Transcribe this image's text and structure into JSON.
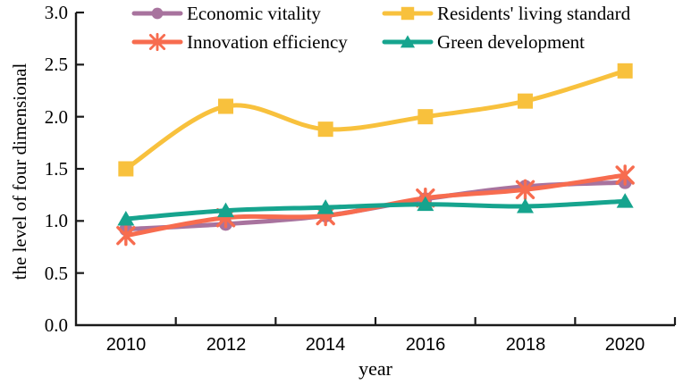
{
  "chart_data": {
    "type": "line",
    "title": "",
    "xlabel": "year",
    "ylabel": "the level of four dimensional",
    "x_categories": [
      "2010",
      "2012",
      "2014",
      "2016",
      "2018",
      "2020"
    ],
    "y_ticks": [
      "3.0",
      "2.5",
      "2.0",
      "1.5",
      "1.0",
      "0.5",
      "0.0"
    ],
    "ylim": [
      0.0,
      3.0
    ],
    "grid": false,
    "legend_position": "top-two-columns",
    "line_style": "smooth",
    "axis_color": "#1a1a1a",
    "series": [
      {
        "name": "Economic vitality",
        "color": "#a8739e",
        "marker": "circle",
        "values": [
          0.92,
          0.97,
          1.05,
          1.21,
          1.33,
          1.37
        ]
      },
      {
        "name": "Innovation efficiency",
        "color": "#f76c4f",
        "marker": "x",
        "values": [
          0.86,
          1.03,
          1.05,
          1.22,
          1.3,
          1.44
        ]
      },
      {
        "name": "Residents' living standard",
        "color": "#f8c13d",
        "marker": "square",
        "values": [
          1.5,
          2.1,
          1.88,
          2.0,
          2.15,
          2.44
        ]
      },
      {
        "name": "Green development",
        "color": "#16a48e",
        "marker": "triangle",
        "values": [
          1.02,
          1.1,
          1.13,
          1.16,
          1.14,
          1.19
        ]
      }
    ]
  }
}
